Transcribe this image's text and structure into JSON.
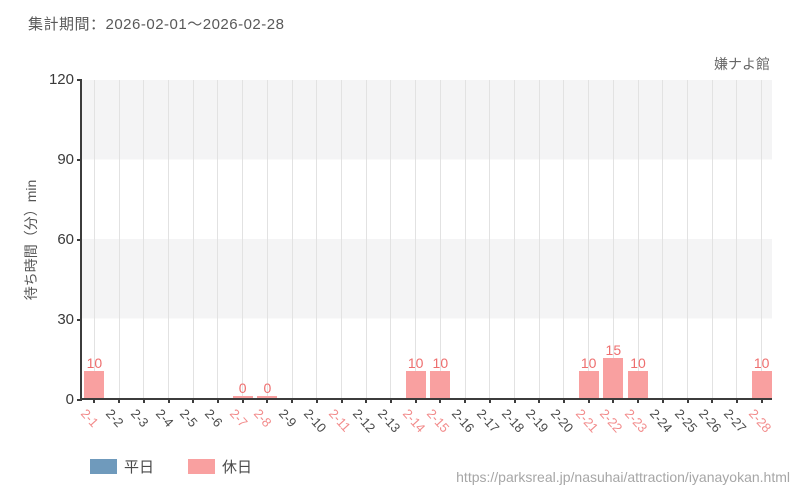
{
  "header": {
    "title": "集計期間：2026-02-01～2026-02-28",
    "attraction": "嫌ナよ館"
  },
  "chart_data": {
    "type": "bar",
    "ylabel": "待ち時間（分）min",
    "ylim": [
      0,
      120
    ],
    "y_ticks": [
      0,
      30,
      60,
      90,
      120
    ],
    "grid": true,
    "legend_position": "bottom-left",
    "categories": [
      "2-1",
      "2-2",
      "2-3",
      "2-4",
      "2-5",
      "2-6",
      "2-7",
      "2-8",
      "2-9",
      "2-10",
      "2-11",
      "2-12",
      "2-13",
      "2-14",
      "2-15",
      "2-16",
      "2-17",
      "2-18",
      "2-19",
      "2-20",
      "2-21",
      "2-22",
      "2-23",
      "2-24",
      "2-25",
      "2-26",
      "2-27",
      "2-28"
    ],
    "series": [
      {
        "name": "平日",
        "color": "#6f9abc",
        "values": [
          null,
          null,
          null,
          null,
          null,
          null,
          null,
          null,
          null,
          null,
          null,
          null,
          null,
          null,
          null,
          null,
          null,
          null,
          null,
          null,
          null,
          null,
          null,
          null,
          null,
          null,
          null,
          null
        ]
      },
      {
        "name": "休日",
        "color": "#f9a0a0",
        "values": [
          10,
          null,
          null,
          null,
          null,
          null,
          0,
          0,
          null,
          null,
          null,
          null,
          null,
          10,
          10,
          null,
          null,
          null,
          null,
          null,
          10,
          15,
          10,
          null,
          null,
          null,
          null,
          10
        ]
      }
    ],
    "holiday_indices": [
      0,
      6,
      7,
      10,
      13,
      14,
      20,
      21,
      22,
      27
    ],
    "colors": {
      "bar_value_label": "#ee6e6e",
      "holiday_tick_label": "#f28b8b",
      "weekday_tick_label": "#4a4a4a",
      "gridline": "#e2e2e2",
      "band": "#f4f4f5",
      "axis": "#3c3c3c"
    }
  },
  "legend": {
    "items": [
      {
        "label": "平日",
        "color": "#6f9abc"
      },
      {
        "label": "休日",
        "color": "#f9a0a0"
      }
    ]
  },
  "footer": {
    "url": "https://parksreal.jp/nasuhai/attraction/iyanayokan.html"
  }
}
